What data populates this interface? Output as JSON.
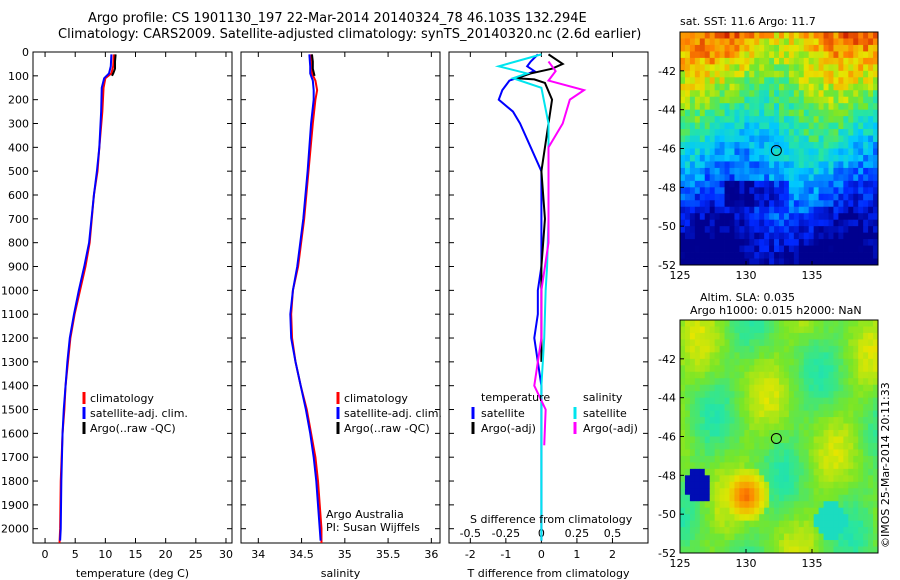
{
  "header": {
    "line1": "Argo profile: CS 1901130_197 22-Mar-2014 20140324_78 46.103S 132.294E",
    "line2": "Climatology: CARS2009. Satellite-adjusted climatology: synTS_20140320.nc (2.6d earlier)"
  },
  "colors": {
    "climatology": "#ff0000",
    "satellite": "#0000ff",
    "argo": "#000000",
    "salinity_satellite": "#00e5ee",
    "salinity_argo": "#ff00ff"
  },
  "chart_data": [
    {
      "id": "temperature",
      "type": "line",
      "xlabel": "temperature (deg C)",
      "ylabel": "",
      "xlim": [
        -2,
        31
      ],
      "ylim": [
        2060,
        0
      ],
      "x_ticks": [
        "0",
        "5",
        "10",
        "15",
        "20",
        "25",
        "30"
      ],
      "y_ticks": [
        "0",
        "100",
        "200",
        "300",
        "400",
        "500",
        "600",
        "700",
        "800",
        "900",
        "1000",
        "1100",
        "1200",
        "1300",
        "1400",
        "1500",
        "1600",
        "1700",
        "1800",
        "1900",
        "2000"
      ],
      "legend": [
        "climatology",
        "satellite-adj. clim.",
        "Argo(..raw -QC)"
      ],
      "series": [
        {
          "name": "climatology",
          "color": "#ff0000",
          "points": [
            [
              11.4,
              10
            ],
            [
              11.3,
              60
            ],
            [
              11.0,
              90
            ],
            [
              10.0,
              110
            ],
            [
              9.7,
              150
            ],
            [
              9.5,
              250
            ],
            [
              9.0,
              400
            ],
            [
              8.7,
              500
            ],
            [
              8.1,
              600
            ],
            [
              7.4,
              800
            ],
            [
              6.7,
              900
            ],
            [
              5.8,
              1000
            ],
            [
              4.9,
              1100
            ],
            [
              4.2,
              1200
            ],
            [
              3.8,
              1300
            ],
            [
              3.4,
              1400
            ],
            [
              3.2,
              1500
            ],
            [
              2.9,
              1600
            ],
            [
              2.6,
              1800
            ],
            [
              2.5,
              2000
            ],
            [
              2.4,
              2060
            ]
          ]
        },
        {
          "name": "satellite-adj. clim.",
          "color": "#0000ff",
          "points": [
            [
              11.0,
              10
            ],
            [
              10.9,
              60
            ],
            [
              10.6,
              90
            ],
            [
              9.8,
              110
            ],
            [
              9.4,
              150
            ],
            [
              9.3,
              250
            ],
            [
              9.0,
              400
            ],
            [
              8.6,
              500
            ],
            [
              8.1,
              600
            ],
            [
              7.3,
              800
            ],
            [
              6.5,
              900
            ],
            [
              5.6,
              1000
            ],
            [
              4.8,
              1100
            ],
            [
              4.1,
              1200
            ],
            [
              3.7,
              1300
            ],
            [
              3.4,
              1400
            ],
            [
              3.1,
              1500
            ],
            [
              2.9,
              1600
            ],
            [
              2.7,
              1800
            ],
            [
              2.6,
              2000
            ],
            [
              2.5,
              2050
            ]
          ]
        },
        {
          "name": "Argo(..raw -QC)",
          "color": "#000000",
          "points": [
            [
              11.7,
              10
            ],
            [
              11.6,
              40
            ],
            [
              11.6,
              70
            ],
            [
              11.3,
              90
            ],
            [
              11.1,
              100
            ]
          ]
        }
      ]
    },
    {
      "id": "salinity",
      "type": "line",
      "xlabel": "salinity",
      "ylabel": "",
      "xlim": [
        33.8,
        36.1
      ],
      "ylim": [
        2060,
        0
      ],
      "x_ticks": [
        "34",
        "34.5",
        "35",
        "35.5",
        "36"
      ],
      "legend": [
        "climatology",
        "satellite-adj. clim.",
        "Argo(..raw -QC)"
      ],
      "annotation": [
        "Argo Australia",
        "PI: Susan Wijffels"
      ],
      "series": [
        {
          "name": "climatology",
          "color": "#ff0000",
          "points": [
            [
              34.61,
              10
            ],
            [
              34.62,
              60
            ],
            [
              34.62,
              90
            ],
            [
              34.66,
              120
            ],
            [
              34.68,
              160
            ],
            [
              34.66,
              200
            ],
            [
              34.63,
              300
            ],
            [
              34.58,
              500
            ],
            [
              34.53,
              700
            ],
            [
              34.46,
              900
            ],
            [
              34.4,
              1000
            ],
            [
              34.38,
              1100
            ],
            [
              34.39,
              1200
            ],
            [
              34.43,
              1300
            ],
            [
              34.49,
              1400
            ],
            [
              34.56,
              1500
            ],
            [
              34.61,
              1600
            ],
            [
              34.66,
              1700
            ],
            [
              34.69,
              1800
            ],
            [
              34.71,
              1900
            ],
            [
              34.73,
              2000
            ],
            [
              34.73,
              2060
            ]
          ]
        },
        {
          "name": "satellite-adj. clim.",
          "color": "#0000ff",
          "points": [
            [
              34.59,
              10
            ],
            [
              34.6,
              60
            ],
            [
              34.6,
              90
            ],
            [
              34.63,
              120
            ],
            [
              34.64,
              160
            ],
            [
              34.64,
              200
            ],
            [
              34.61,
              300
            ],
            [
              34.57,
              500
            ],
            [
              34.52,
              700
            ],
            [
              34.45,
              900
            ],
            [
              34.4,
              1000
            ],
            [
              34.37,
              1100
            ],
            [
              34.38,
              1200
            ],
            [
              34.43,
              1300
            ],
            [
              34.49,
              1400
            ],
            [
              34.55,
              1500
            ],
            [
              34.6,
              1600
            ],
            [
              34.64,
              1700
            ],
            [
              34.67,
              1800
            ],
            [
              34.69,
              1900
            ],
            [
              34.71,
              2000
            ],
            [
              34.72,
              2050
            ]
          ]
        },
        {
          "name": "Argo(..raw -QC)",
          "color": "#000000",
          "points": [
            [
              34.62,
              10
            ],
            [
              34.63,
              40
            ],
            [
              34.63,
              70
            ],
            [
              34.65,
              100
            ]
          ]
        }
      ]
    },
    {
      "id": "difference",
      "type": "line",
      "xlabel": "T difference from climatology",
      "xlabel_top": "S difference from climatology",
      "xlim": [
        -2.6,
        3.0
      ],
      "ylim": [
        2060,
        0
      ],
      "x_ticks": [
        "-2",
        "-1",
        "0",
        "1",
        "2"
      ],
      "s_ticks": [
        "-0.5",
        "-0.25",
        "0",
        "0.25",
        "0.5"
      ],
      "legend_temperature": [
        "temperature",
        "satellite",
        "Argo(-adj)"
      ],
      "legend_salinity": [
        "salinity",
        "satellite",
        "Argo(-adj)"
      ],
      "series": [
        {
          "name": "satellite",
          "group": "temperature",
          "color": "#0000ff",
          "points": [
            [
              -0.1,
              10
            ],
            [
              -0.3,
              40
            ],
            [
              -0.4,
              60
            ],
            [
              -0.2,
              80
            ],
            [
              -0.5,
              100
            ],
            [
              -0.9,
              120
            ],
            [
              -1.1,
              160
            ],
            [
              -1.2,
              200
            ],
            [
              -0.8,
              250
            ],
            [
              -0.6,
              300
            ],
            [
              -0.3,
              400
            ],
            [
              0.0,
              500
            ],
            [
              0.0,
              700
            ],
            [
              0.0,
              900
            ],
            [
              -0.1,
              1000
            ],
            [
              -0.1,
              1100
            ],
            [
              -0.2,
              1200
            ],
            [
              -0.1,
              1300
            ],
            [
              0.0,
              1400
            ],
            [
              0.0,
              1600
            ],
            [
              0.0,
              2050
            ]
          ]
        },
        {
          "name": "Argo(-adj)",
          "group": "temperature",
          "color": "#000000",
          "points": [
            [
              0.2,
              10
            ],
            [
              0.6,
              50
            ],
            [
              0.3,
              70
            ],
            [
              -0.3,
              90
            ],
            [
              -0.7,
              110
            ],
            [
              -0.2,
              115
            ],
            [
              0.1,
              130
            ],
            [
              0.3,
              200
            ],
            [
              0.2,
              300
            ],
            [
              0.1,
              400
            ],
            [
              0.0,
              500
            ],
            [
              0.1,
              700
            ],
            [
              0.0,
              900
            ],
            [
              0.0,
              1000
            ],
            [
              0.0,
              1100
            ],
            [
              0.0,
              1200
            ],
            [
              0.0,
              1300
            ]
          ]
        },
        {
          "name": "satellite",
          "group": "salinity",
          "color": "#00e5ee",
          "points": [
            [
              0.0,
              10
            ],
            [
              -0.3,
              60
            ],
            [
              -0.1,
              90
            ],
            [
              -0.2,
              110
            ],
            [
              0.0,
              150
            ],
            [
              0.05,
              300
            ],
            [
              0.05,
              500
            ],
            [
              0.05,
              700
            ],
            [
              0.04,
              900
            ],
            [
              0.03,
              1000
            ],
            [
              0.02,
              1200
            ],
            [
              0.0,
              1400
            ],
            [
              0.0,
              1600
            ],
            [
              0.0,
              2050
            ]
          ]
        },
        {
          "name": "Argo(-adj)",
          "group": "salinity",
          "color": "#ff00ff",
          "points": [
            [
              0.05,
              40
            ],
            [
              0.1,
              80
            ],
            [
              0.05,
              120
            ],
            [
              0.3,
              160
            ],
            [
              0.2,
              200
            ],
            [
              0.15,
              300
            ],
            [
              0.05,
              400
            ],
            [
              0.05,
              600
            ],
            [
              0.05,
              700
            ],
            [
              0.05,
              800
            ],
            [
              0.0,
              1000
            ],
            [
              0.0,
              1200
            ],
            [
              -0.05,
              1400
            ],
            [
              0.03,
              1500
            ],
            [
              0.02,
              1650
            ]
          ]
        }
      ]
    },
    {
      "id": "sst_map",
      "type": "heatmap",
      "title": "sat. SST: 11.6 Argo: 11.7",
      "xlim": [
        125,
        140
      ],
      "ylim": [
        -52,
        -40
      ],
      "x_ticks": [
        "125",
        "130",
        "135"
      ],
      "y_ticks": [
        "-42",
        "-44",
        "-46",
        "-48",
        "-50",
        "-52"
      ],
      "marker": {
        "lon": 132.3,
        "lat": -46.1
      }
    },
    {
      "id": "sla_map",
      "type": "heatmap",
      "title": "Altim. SLA: 0.035",
      "subtitle": "Argo h1000: 0.015 h2000: NaN",
      "xlim": [
        125,
        140
      ],
      "ylim": [
        -52,
        -40
      ],
      "x_ticks": [
        "125",
        "130",
        "135"
      ],
      "y_ticks": [
        "-42",
        "-44",
        "-46",
        "-48",
        "-50",
        "-52"
      ],
      "marker": {
        "lon": 132.3,
        "lat": -46.1
      }
    }
  ],
  "footer": {
    "stamp": "©IMOS 25-Mar-2014 20:11:33"
  }
}
